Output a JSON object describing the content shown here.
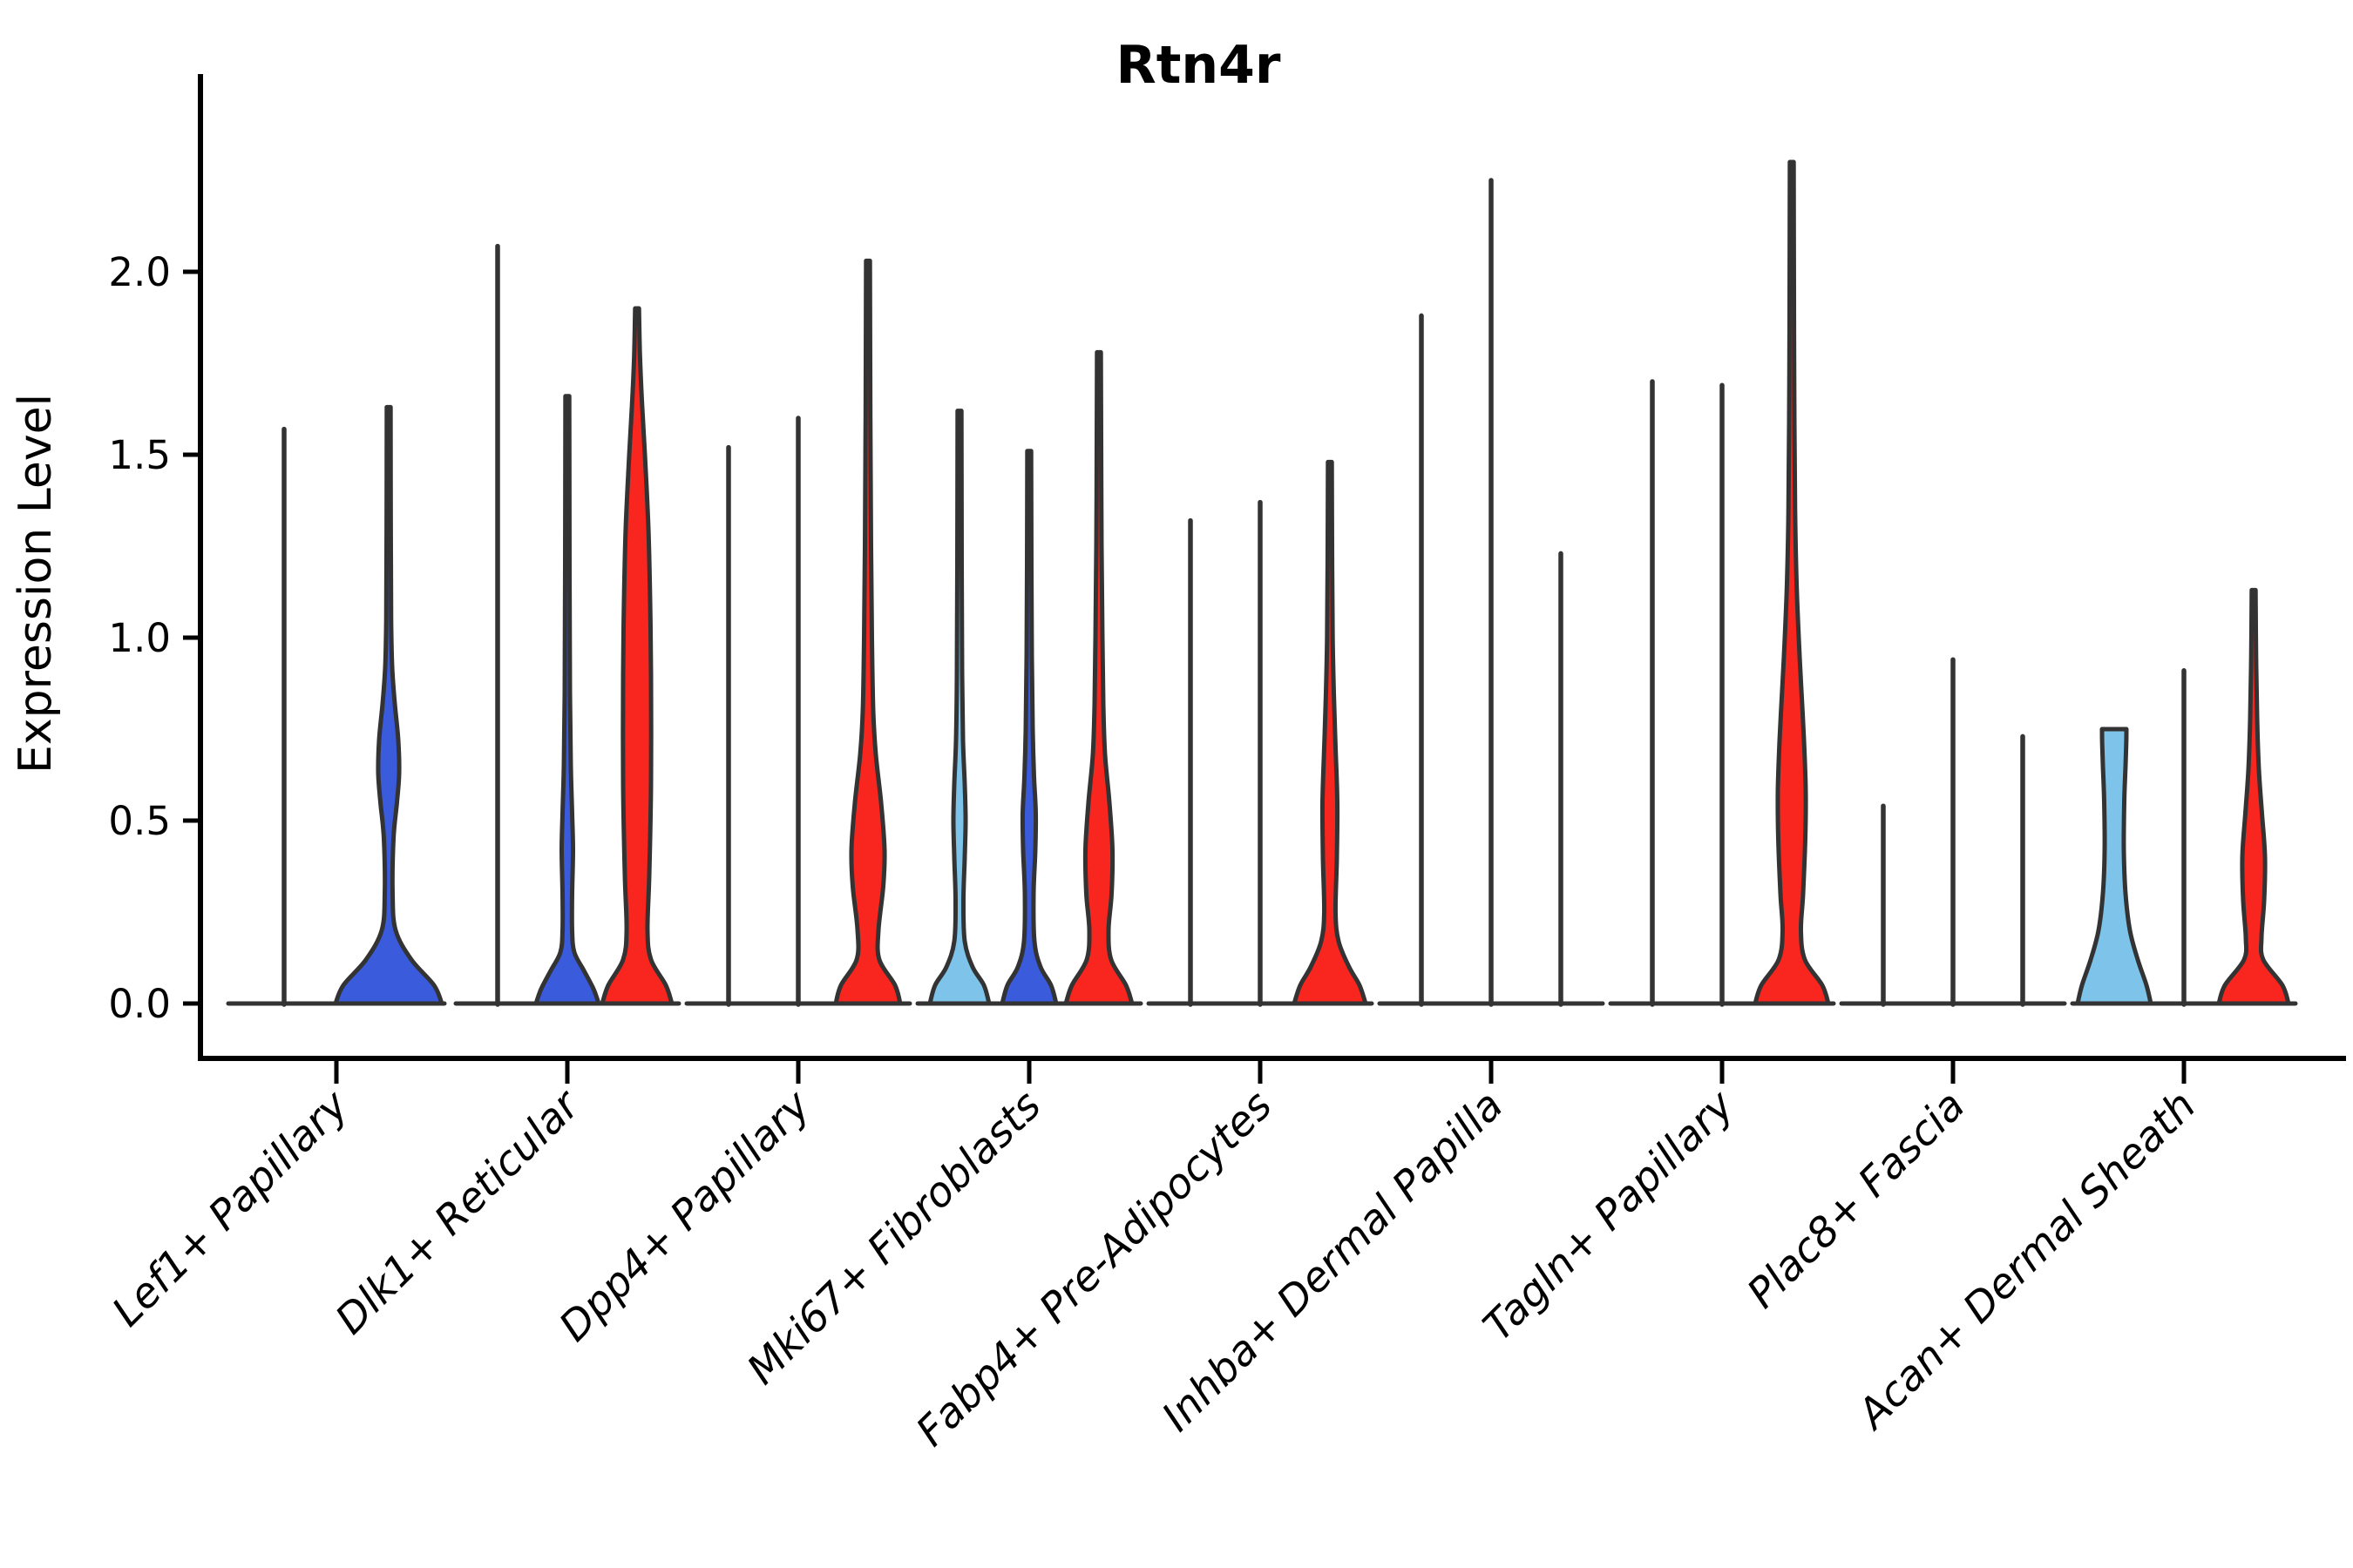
{
  "chart_data": {
    "type": "violin",
    "title": "Rtn4r",
    "xlabel": "",
    "ylabel": "Expression Level",
    "ylim": [
      -0.07,
      2.55
    ],
    "grid": false,
    "legend": "none",
    "yticks": [
      0.0,
      0.5,
      1.0,
      1.5,
      2.0
    ],
    "ytick_labels": [
      "0.0",
      "0.5",
      "1.0",
      "1.5",
      "2.0"
    ],
    "categories": [
      "Lef1+ Papillary",
      "Dlk1+ Reticular",
      "Dpp4+ Papillary",
      "Mki67+ Fibroblasts",
      "Fabp4+ Pre-Adipocytes",
      "Inhba+ Dermal Papilla",
      "Tagln+ Papillary",
      "Plac8+ Fascia",
      "Acan+ Dermal Sheath"
    ],
    "conditions": [
      {
        "name": "split-1",
        "color": "#7EC4EA"
      },
      {
        "name": "split-2",
        "color": "#3A5BDC"
      },
      {
        "name": "split-3",
        "color": "#F8261E"
      }
    ],
    "outline_color": "#333333",
    "groups": [
      {
        "label": "Lef1+ Papillary",
        "violins": [
          {
            "condition": 0,
            "max": 1.57,
            "profile": "line"
          },
          {
            "condition": 1,
            "max": 1.63,
            "profile": [
              [
                0,
                61
              ],
              [
                0.05,
                52
              ],
              [
                0.12,
                26
              ],
              [
                0.2,
                8
              ],
              [
                0.3,
                4.5
              ],
              [
                0.45,
                5.5
              ],
              [
                0.55,
                9.5
              ],
              [
                0.63,
                12
              ],
              [
                0.72,
                11
              ],
              [
                0.82,
                7
              ],
              [
                0.92,
                4
              ],
              [
                1.05,
                2.8
              ],
              [
                1.3,
                2.4
              ],
              [
                1.63,
                2.2
              ]
            ]
          }
        ]
      },
      {
        "label": "Dlk1+ Reticular",
        "violins": [
          {
            "condition": 0,
            "max": 2.07,
            "profile": "line"
          },
          {
            "condition": 1,
            "max": 1.66,
            "profile": [
              [
                0,
                36
              ],
              [
                0.04,
                30
              ],
              [
                0.09,
                19
              ],
              [
                0.14,
                8
              ],
              [
                0.2,
                5.5
              ],
              [
                0.3,
                5.5
              ],
              [
                0.42,
                6.5
              ],
              [
                0.52,
                5.5
              ],
              [
                0.65,
                4
              ],
              [
                0.85,
                3
              ],
              [
                1.2,
                2.5
              ],
              [
                1.66,
                2.2
              ]
            ]
          },
          {
            "condition": 2,
            "max": 1.9,
            "profile": [
              [
                0,
                40
              ],
              [
                0.05,
                33
              ],
              [
                0.12,
                16
              ],
              [
                0.2,
                12
              ],
              [
                0.35,
                14
              ],
              [
                0.6,
                16
              ],
              [
                0.9,
                16
              ],
              [
                1.1,
                15
              ],
              [
                1.3,
                13
              ],
              [
                1.5,
                9
              ],
              [
                1.65,
                5.5
              ],
              [
                1.78,
                3.2
              ],
              [
                1.9,
                2.2
              ]
            ]
          }
        ]
      },
      {
        "label": "Dpp4+ Papillary",
        "violins": [
          {
            "condition": 0,
            "max": 1.52,
            "profile": "line"
          },
          {
            "condition": 1,
            "max": 1.6,
            "profile": "line"
          },
          {
            "condition": 2,
            "max": 2.03,
            "profile": [
              [
                0,
                37
              ],
              [
                0.05,
                31
              ],
              [
                0.12,
                13
              ],
              [
                0.2,
                12
              ],
              [
                0.32,
                17.5
              ],
              [
                0.42,
                19
              ],
              [
                0.55,
                15
              ],
              [
                0.68,
                9
              ],
              [
                0.8,
                6
              ],
              [
                1.0,
                4.5
              ],
              [
                1.25,
                3.5
              ],
              [
                1.6,
                2.7
              ],
              [
                2.03,
                2.2
              ]
            ]
          }
        ]
      },
      {
        "label": "Mki67+ Fibroblasts",
        "violins": [
          {
            "condition": 0,
            "max": 1.62,
            "profile": [
              [
                0,
                34
              ],
              [
                0.05,
                28
              ],
              [
                0.1,
                15
              ],
              [
                0.17,
                6
              ],
              [
                0.28,
                4.5
              ],
              [
                0.4,
                6
              ],
              [
                0.5,
                7
              ],
              [
                0.6,
                6
              ],
              [
                0.72,
                4
              ],
              [
                0.9,
                3
              ],
              [
                1.2,
                2.5
              ],
              [
                1.62,
                2.2
              ]
            ]
          },
          {
            "condition": 1,
            "max": 1.51,
            "profile": [
              [
                0,
                31
              ],
              [
                0.05,
                25
              ],
              [
                0.1,
                13
              ],
              [
                0.17,
                6
              ],
              [
                0.3,
                5
              ],
              [
                0.42,
                7
              ],
              [
                0.52,
                7.5
              ],
              [
                0.62,
                5.5
              ],
              [
                0.75,
                4
              ],
              [
                0.95,
                3
              ],
              [
                1.2,
                2.5
              ],
              [
                1.51,
                2.2
              ]
            ]
          },
          {
            "condition": 2,
            "max": 1.78,
            "profile": [
              [
                0,
                38
              ],
              [
                0.05,
                31
              ],
              [
                0.12,
                14
              ],
              [
                0.2,
                11
              ],
              [
                0.3,
                14.5
              ],
              [
                0.42,
                15.5
              ],
              [
                0.55,
                12
              ],
              [
                0.68,
                7
              ],
              [
                0.82,
                5
              ],
              [
                1.0,
                4
              ],
              [
                1.25,
                3
              ],
              [
                1.55,
                2.5
              ],
              [
                1.78,
                2.2
              ]
            ]
          }
        ]
      },
      {
        "label": "Fabp4+ Pre-Adipocytes",
        "violins": [
          {
            "condition": 0,
            "max": 1.32,
            "profile": "line"
          },
          {
            "condition": 1,
            "max": 1.37,
            "profile": "line"
          },
          {
            "condition": 2,
            "max": 1.48,
            "profile": [
              [
                0,
                41
              ],
              [
                0.05,
                34
              ],
              [
                0.1,
                22
              ],
              [
                0.17,
                10
              ],
              [
                0.25,
                6.5
              ],
              [
                0.4,
                8
              ],
              [
                0.55,
                8.5
              ],
              [
                0.7,
                6.5
              ],
              [
                0.85,
                4.5
              ],
              [
                1.0,
                3.2
              ],
              [
                1.2,
                2.6
              ],
              [
                1.48,
                2.2
              ]
            ]
          }
        ]
      },
      {
        "label": "Inhba+ Dermal Papilla",
        "violins": [
          {
            "condition": 0,
            "max": 1.88,
            "profile": "line"
          },
          {
            "condition": 1,
            "max": 2.25,
            "profile": "line"
          },
          {
            "condition": 2,
            "max": 1.23,
            "profile": "line"
          }
        ]
      },
      {
        "label": "Tagln+ Papillary",
        "violins": [
          {
            "condition": 0,
            "max": 1.7,
            "profile": "line"
          },
          {
            "condition": 1,
            "max": 1.69,
            "profile": "line"
          },
          {
            "condition": 2,
            "max": 2.3,
            "profile": [
              [
                0,
                42
              ],
              [
                0.05,
                35
              ],
              [
                0.12,
                15
              ],
              [
                0.2,
                10.5
              ],
              [
                0.3,
                13
              ],
              [
                0.45,
                15.5
              ],
              [
                0.58,
                16
              ],
              [
                0.72,
                14
              ],
              [
                0.88,
                10.5
              ],
              [
                1.0,
                8
              ],
              [
                1.15,
                5.5
              ],
              [
                1.35,
                3.8
              ],
              [
                1.7,
                2.8
              ],
              [
                2.05,
                2.4
              ],
              [
                2.3,
                2.2
              ]
            ]
          }
        ]
      },
      {
        "label": "Plac8+ Fascia",
        "violins": [
          {
            "condition": 0,
            "max": 0.54,
            "profile": "line"
          },
          {
            "condition": 1,
            "max": 0.94,
            "profile": "line"
          },
          {
            "condition": 2,
            "max": 0.73,
            "profile": "line"
          }
        ]
      },
      {
        "label": "Acan+ Dermal Sheath",
        "violins": [
          {
            "condition": 0,
            "max": 0.75,
            "profile": [
              [
                0,
                42
              ],
              [
                0.05,
                37
              ],
              [
                0.12,
                27
              ],
              [
                0.2,
                18
              ],
              [
                0.3,
                13
              ],
              [
                0.42,
                11
              ],
              [
                0.55,
                11.5
              ],
              [
                0.65,
                13
              ],
              [
                0.71,
                13.8
              ],
              [
                0.75,
                14
              ]
            ]
          },
          {
            "condition": 1,
            "max": 0.91,
            "profile": "line"
          },
          {
            "condition": 2,
            "max": 1.13,
            "profile": [
              [
                0,
                40
              ],
              [
                0.05,
                33
              ],
              [
                0.12,
                11
              ],
              [
                0.18,
                9
              ],
              [
                0.28,
                12
              ],
              [
                0.4,
                13
              ],
              [
                0.52,
                9.5
              ],
              [
                0.64,
                6
              ],
              [
                0.78,
                4
              ],
              [
                0.95,
                2.8
              ],
              [
                1.13,
                2.2
              ]
            ]
          }
        ]
      }
    ]
  }
}
